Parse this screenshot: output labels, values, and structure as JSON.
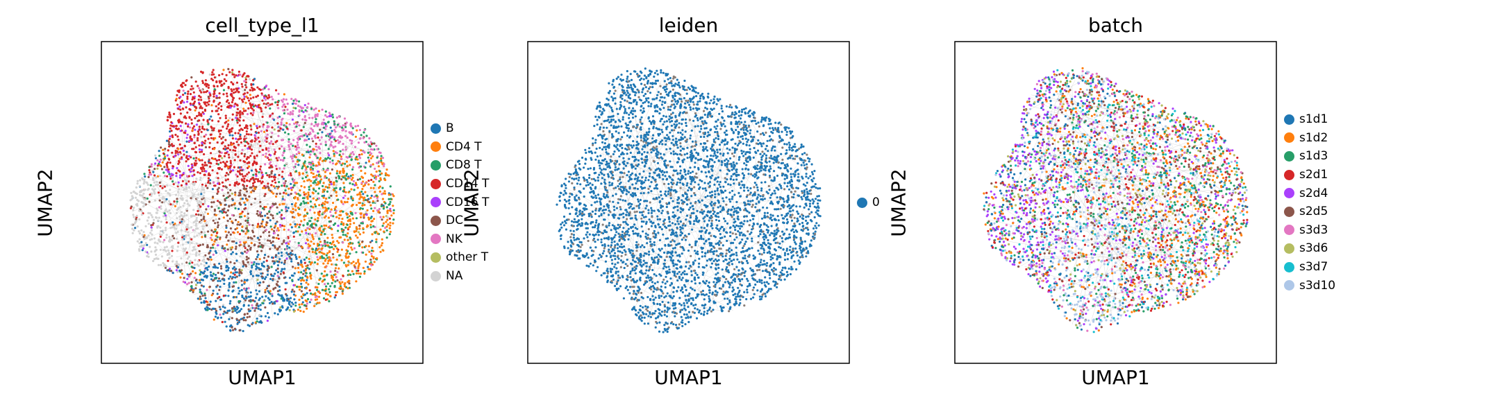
{
  "chart_data": [
    {
      "type": "scatter",
      "title": "cell_type_l1",
      "xlabel": "UMAP1",
      "ylabel": "UMAP2",
      "legend_position": "right",
      "grid": false,
      "ticks": false,
      "series": [
        {
          "name": "B",
          "color": "#1f77b4"
        },
        {
          "name": "CD4 T",
          "color": "#ff7f0e"
        },
        {
          "name": "CD8 T",
          "color": "#279e68"
        },
        {
          "name": "CD14 T",
          "color": "#d62728"
        },
        {
          "name": "CD16 T",
          "color": "#aa40fc"
        },
        {
          "name": "DC",
          "color": "#8c564b"
        },
        {
          "name": "NK",
          "color": "#e377c2"
        },
        {
          "name": "other T",
          "color": "#b5bd61"
        },
        {
          "name": "NA",
          "color": "#d3d3d3"
        }
      ]
    },
    {
      "type": "scatter",
      "title": "leiden",
      "xlabel": "UMAP1",
      "ylabel": "UMAP2",
      "legend_position": "right",
      "grid": false,
      "ticks": false,
      "series": [
        {
          "name": "0",
          "color": "#1f77b4"
        }
      ]
    },
    {
      "type": "scatter",
      "title": "batch",
      "xlabel": "UMAP1",
      "ylabel": "UMAP2",
      "legend_position": "right",
      "grid": false,
      "ticks": false,
      "series": [
        {
          "name": "s1d1",
          "color": "#1f77b4"
        },
        {
          "name": "s1d2",
          "color": "#ff7f0e"
        },
        {
          "name": "s1d3",
          "color": "#279e68"
        },
        {
          "name": "s2d1",
          "color": "#d62728"
        },
        {
          "name": "s2d4",
          "color": "#aa40fc"
        },
        {
          "name": "s2d5",
          "color": "#8c564b"
        },
        {
          "name": "s3d3",
          "color": "#e377c2"
        },
        {
          "name": "s3d6",
          "color": "#b5bd61"
        },
        {
          "name": "s3d7",
          "color": "#17becf"
        },
        {
          "name": "s3d10",
          "color": "#aec7e8"
        }
      ]
    }
  ]
}
